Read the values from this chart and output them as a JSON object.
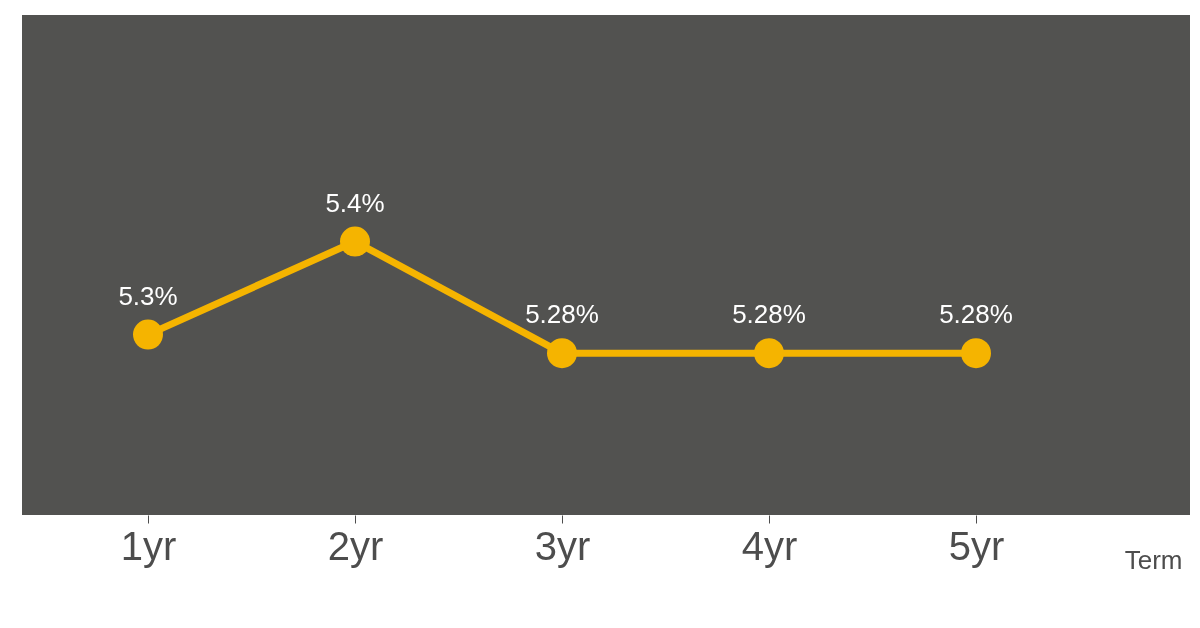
{
  "chart_data": {
    "type": "line",
    "xlabel": "Term",
    "categories": [
      "1yr",
      "2yr",
      "3yr",
      "4yr",
      "5yr"
    ],
    "series": [
      {
        "color": "#f5b400",
        "values": [
          5.3,
          5.4,
          5.28,
          5.28,
          5.28
        ],
        "value_labels": [
          "5.3%",
          "5.4%",
          "5.28%",
          "5.28%",
          "5.28%"
        ]
      }
    ],
    "marker": "circle",
    "grid": false,
    "tick_labels": "x"
  }
}
